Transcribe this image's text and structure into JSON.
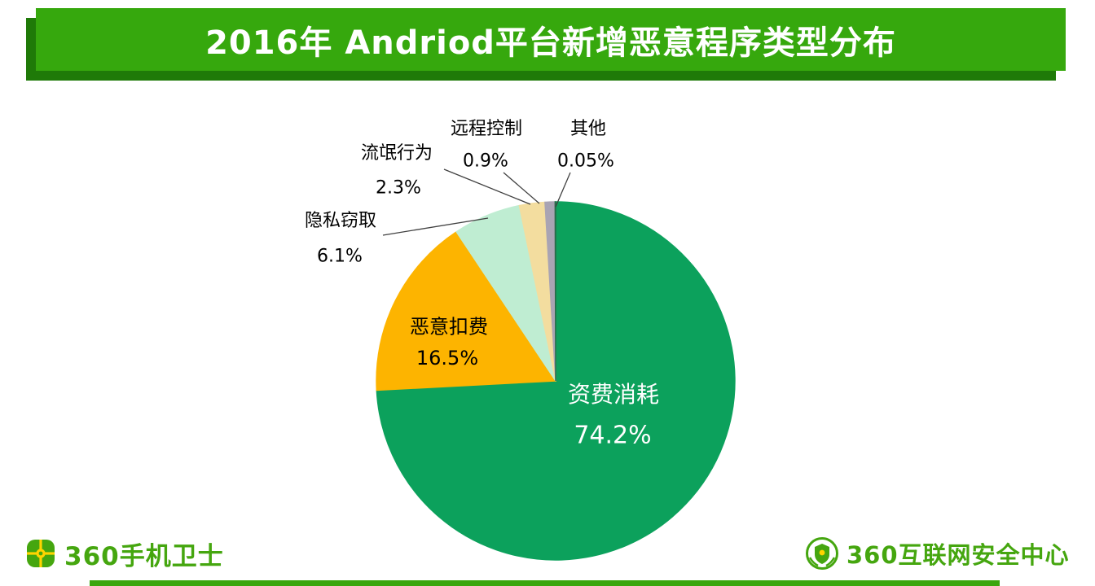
{
  "header": {
    "title": "2016年 Andriod平台新增恶意程序类型分布"
  },
  "chart_data": {
    "type": "pie",
    "title": "2016年 Andriod平台新增恶意程序类型分布",
    "direction": "clockwise",
    "start_angle": "top",
    "legend_position": "none",
    "slices": [
      {
        "label": "资费消耗",
        "value": 74.2,
        "display": "74.2%",
        "color": "#0ca15c",
        "label_position": "inside"
      },
      {
        "label": "恶意扣费",
        "value": 16.5,
        "display": "16.5%",
        "color": "#fdb400",
        "label_position": "inside"
      },
      {
        "label": "隐私窃取",
        "value": 6.1,
        "display": "6.1%",
        "color": "#bfedd2",
        "label_position": "outside"
      },
      {
        "label": "流氓行为",
        "value": 2.3,
        "display": "2.3%",
        "color": "#f3dd9f",
        "label_position": "outside"
      },
      {
        "label": "远程控制",
        "value": 0.9,
        "display": "0.9%",
        "color": "#a9a4b3",
        "label_position": "outside"
      },
      {
        "label": "其他",
        "value": 0.05,
        "display": "0.05%",
        "color": "#2a6b4a",
        "label_position": "outside"
      }
    ]
  },
  "footer": {
    "left_brand": "360手机卫士",
    "right_brand": "360互联网安全中心"
  },
  "colors": {
    "banner": "#36a80d",
    "banner_shadow": "#1f7a08",
    "brand_green": "#45a60f",
    "bottom_bar": "#3aa60e"
  }
}
